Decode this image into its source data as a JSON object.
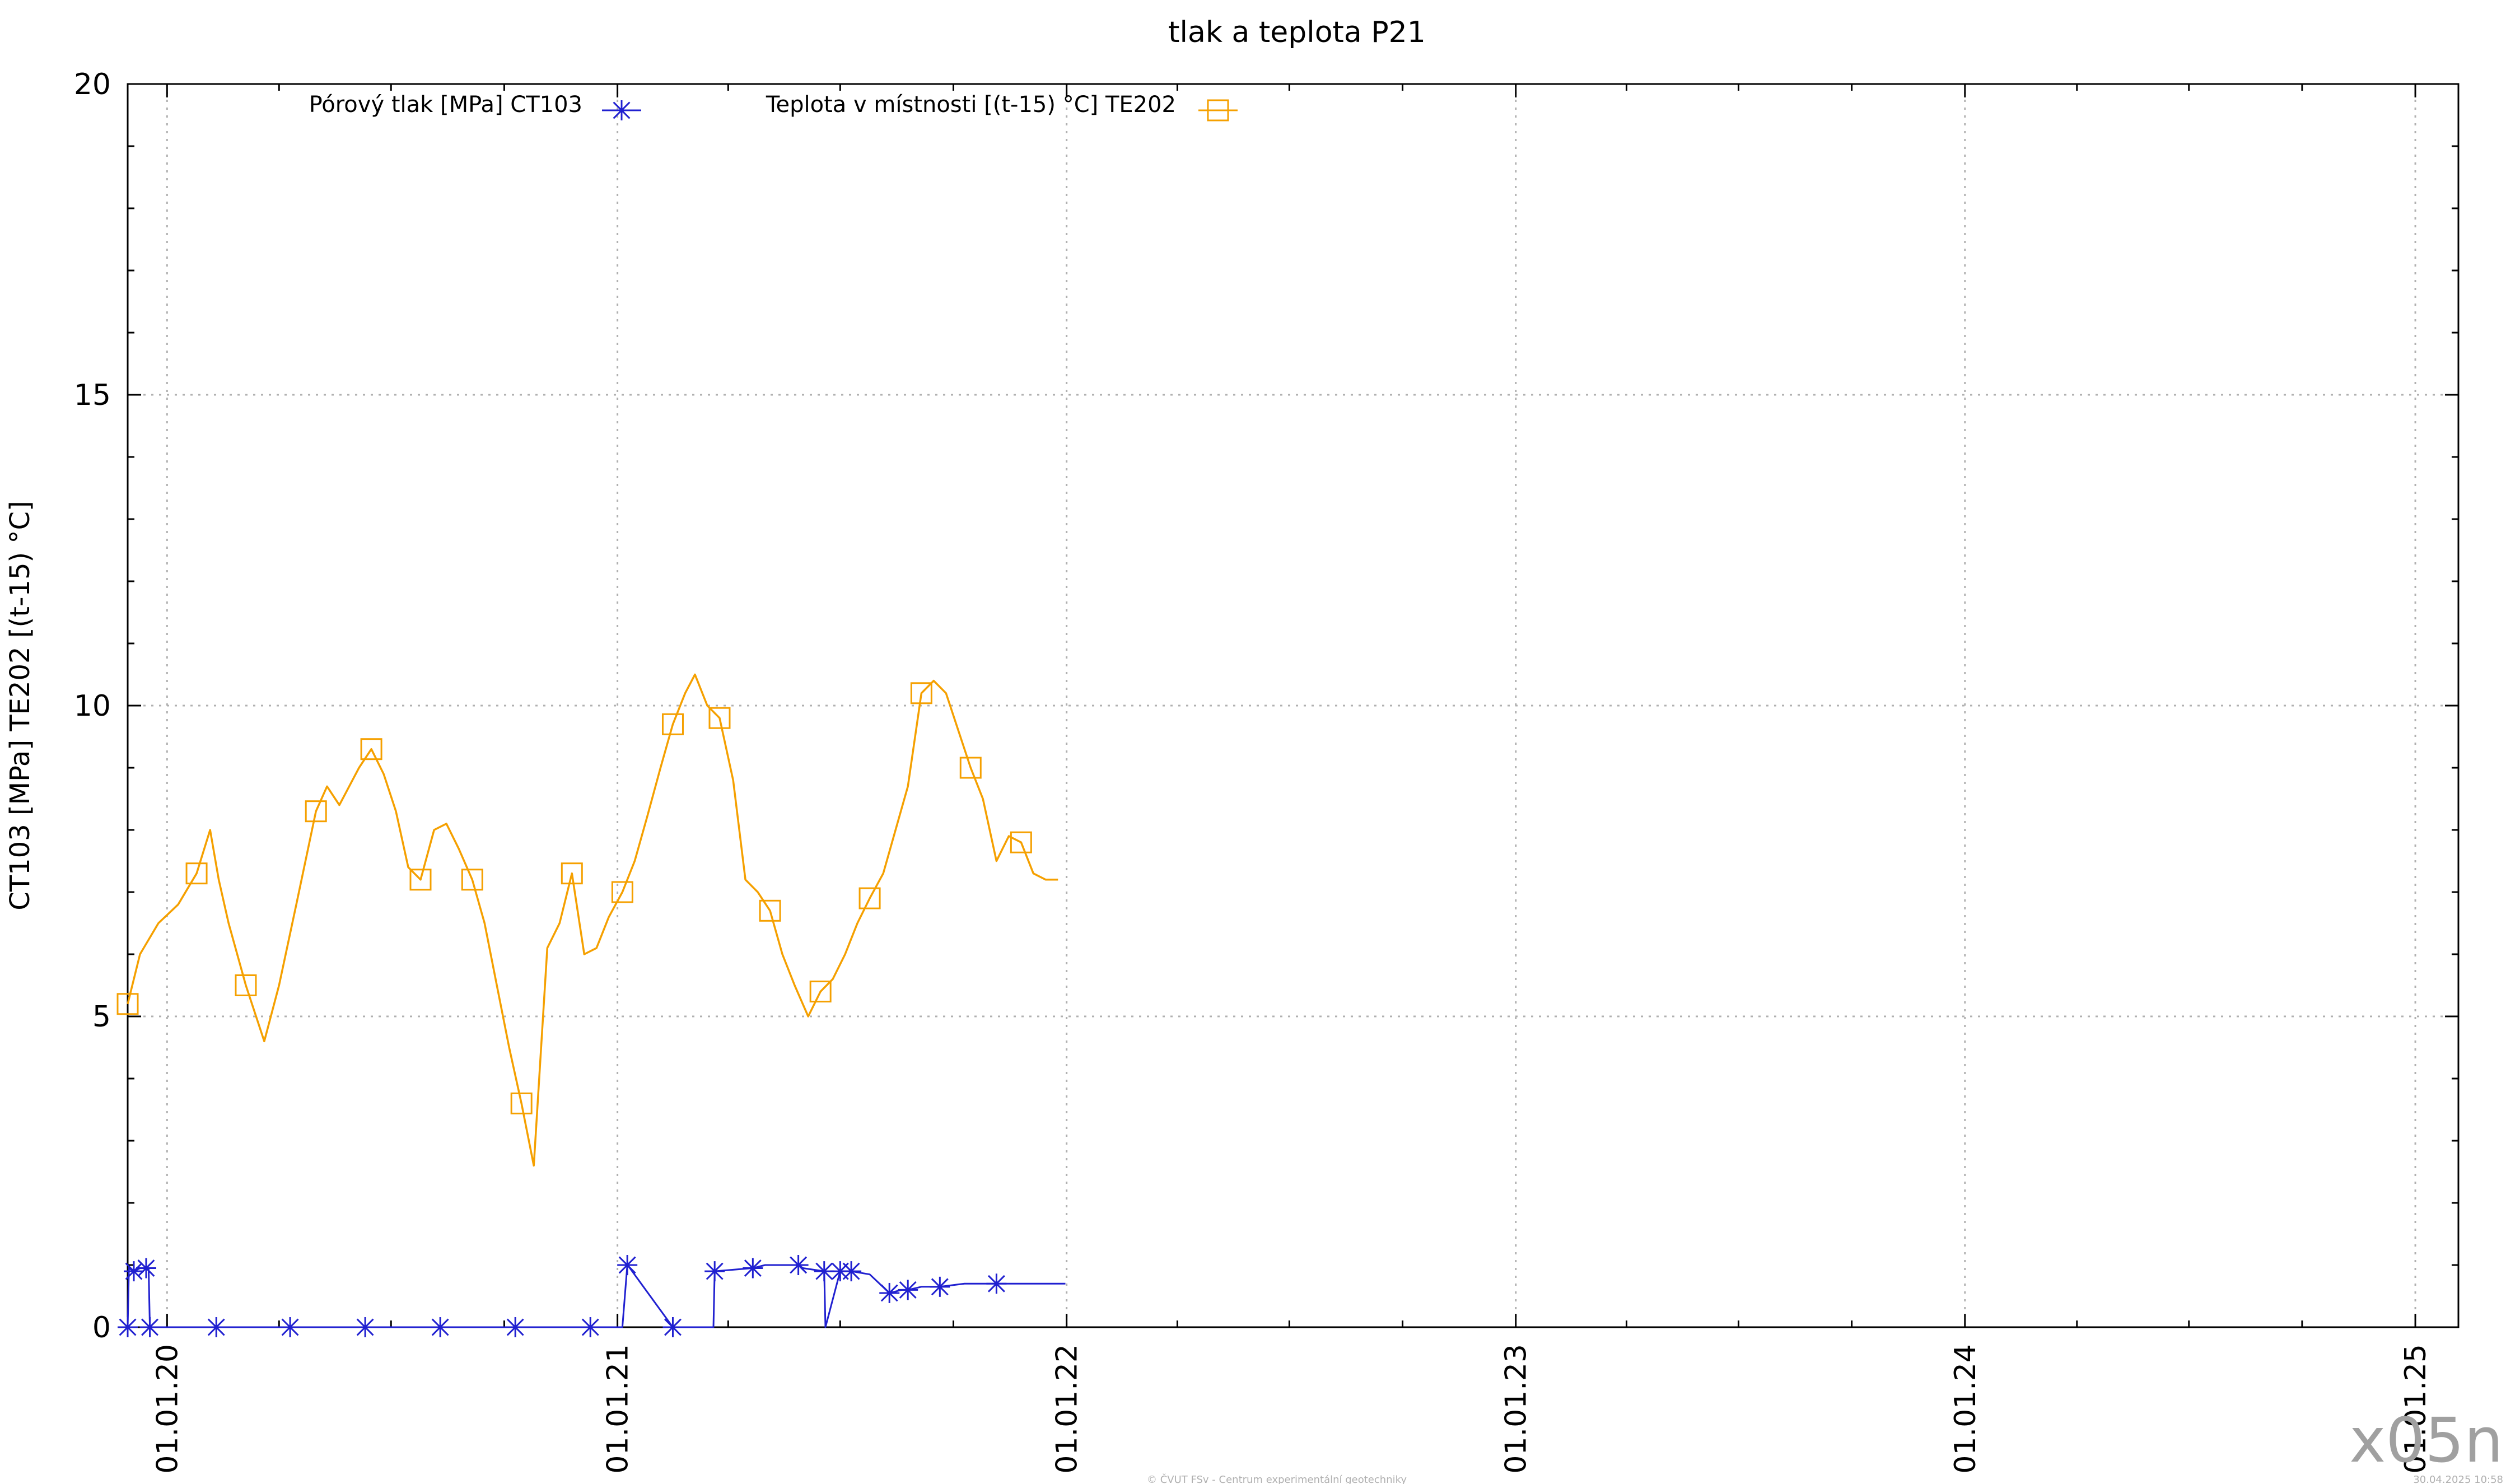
{
  "chart_data": {
    "type": "line",
    "title": "tlak a teplota P21",
    "ylabel": "CT103 [MPa] TE202 [(t-15) °C]",
    "ylim": [
      0,
      20
    ],
    "yticks": [
      "0",
      "5",
      "10",
      "15",
      "20"
    ],
    "xlim": [
      "2019-11-30",
      "2025-02-05"
    ],
    "xticks": [
      {
        "date": "2020-01-01",
        "label": "01.01.20"
      },
      {
        "date": "2021-01-01",
        "label": "01.01.21"
      },
      {
        "date": "2022-01-01",
        "label": "01.01.22"
      },
      {
        "date": "2023-01-01",
        "label": "01.01.23"
      },
      {
        "date": "2024-01-01",
        "label": "01.01.24"
      },
      {
        "date": "2025-01-01",
        "label": "01.01.25"
      }
    ],
    "grid": true,
    "legend_position": "top",
    "series": [
      {
        "name": "Pórový tlak [MPa] CT103",
        "color": "#2020d0",
        "marker": "asterisk",
        "x": [
          "2019-11-30",
          "2019-12-01",
          "2019-12-05",
          "2019-12-10",
          "2019-12-15",
          "2019-12-17",
          "2019-12-18",
          "2020-01-10",
          "2020-02-10",
          "2020-03-10",
          "2020-04-10",
          "2020-05-10",
          "2020-06-10",
          "2020-07-10",
          "2020-08-10",
          "2020-09-10",
          "2020-10-10",
          "2020-11-10",
          "2020-12-10",
          "2021-01-05",
          "2021-01-09",
          "2021-01-10",
          "2021-02-15",
          "2021-03-20",
          "2021-03-21",
          "2021-04-20",
          "2021-04-21",
          "2021-05-01",
          "2021-05-28",
          "2021-06-01",
          "2021-06-18",
          "2021-06-19",
          "2021-07-01",
          "2021-07-06",
          "2021-07-10",
          "2021-07-25",
          "2021-08-10",
          "2021-08-20",
          "2021-08-25",
          "2021-09-05",
          "2021-09-20",
          "2021-10-10",
          "2021-11-05",
          "2021-12-31"
        ],
        "y": [
          0.0,
          0.95,
          0.9,
          0.95,
          0.95,
          0.95,
          0.0,
          0.0,
          0.0,
          0.0,
          0.0,
          0.0,
          0.0,
          0.0,
          0.0,
          0.0,
          0.0,
          0.0,
          0.0,
          0.0,
          1.0,
          0.98,
          0.0,
          0.0,
          0.9,
          0.95,
          0.95,
          1.0,
          1.0,
          0.95,
          0.9,
          0.0,
          0.9,
          0.9,
          0.9,
          0.85,
          0.55,
          0.6,
          0.6,
          0.65,
          0.65,
          0.7,
          0.7,
          0.7
        ]
      },
      {
        "name": "Teplota v místnosti [(t-15) °C] TE202",
        "color": "#f5a000",
        "marker": "square",
        "x": [
          "2019-11-30",
          "2019-12-10",
          "2019-12-25",
          "2020-01-10",
          "2020-01-25",
          "2020-02-05",
          "2020-02-12",
          "2020-02-20",
          "2020-03-05",
          "2020-03-20",
          "2020-04-01",
          "2020-04-15",
          "2020-05-01",
          "2020-05-10",
          "2020-05-20",
          "2020-06-05",
          "2020-06-15",
          "2020-06-25",
          "2020-07-05",
          "2020-07-15",
          "2020-07-25",
          "2020-08-05",
          "2020-08-15",
          "2020-08-25",
          "2020-09-05",
          "2020-09-15",
          "2020-09-25",
          "2020-10-05",
          "2020-10-15",
          "2020-10-25",
          "2020-11-05",
          "2020-11-15",
          "2020-11-25",
          "2020-12-05",
          "2020-12-15",
          "2020-12-25",
          "2021-01-05",
          "2021-01-15",
          "2021-01-25",
          "2021-02-05",
          "2021-02-15",
          "2021-02-25",
          "2021-03-05",
          "2021-03-15",
          "2021-03-25",
          "2021-04-05",
          "2021-04-15",
          "2021-04-25",
          "2021-05-05",
          "2021-05-15",
          "2021-05-25",
          "2021-06-05",
          "2021-06-15",
          "2021-06-25",
          "2021-07-05",
          "2021-07-15",
          "2021-07-25",
          "2021-08-05",
          "2021-08-15",
          "2021-08-25",
          "2021-09-05",
          "2021-09-15",
          "2021-09-25",
          "2021-10-05",
          "2021-10-15",
          "2021-10-25",
          "2021-11-05",
          "2021-11-15",
          "2021-11-25",
          "2021-12-05",
          "2021-12-15",
          "2021-12-25"
        ],
        "y": [
          5.2,
          6.0,
          6.5,
          6.8,
          7.3,
          8.0,
          7.2,
          6.5,
          5.5,
          4.6,
          5.5,
          6.8,
          8.3,
          8.7,
          8.4,
          9.0,
          9.3,
          8.9,
          8.3,
          7.4,
          7.2,
          8.0,
          8.1,
          7.7,
          7.2,
          6.5,
          5.5,
          4.5,
          3.6,
          2.6,
          6.1,
          6.5,
          7.3,
          6.0,
          6.1,
          6.6,
          7.0,
          7.5,
          8.2,
          9.0,
          9.7,
          10.2,
          10.5,
          10.0,
          9.8,
          8.8,
          7.2,
          7.0,
          6.7,
          6.0,
          5.5,
          5.0,
          5.4,
          5.6,
          6.0,
          6.5,
          6.9,
          7.3,
          8.0,
          8.7,
          10.2,
          10.4,
          10.2,
          9.6,
          9.0,
          8.5,
          7.5,
          7.9,
          7.8,
          7.3,
          7.2,
          7.2
        ]
      }
    ]
  },
  "footer": {
    "copyright": "© ČVUT FSv - Centrum experimentální geotechniky",
    "timestamp": "30.04.2025 10:58",
    "watermark": "x05n"
  }
}
